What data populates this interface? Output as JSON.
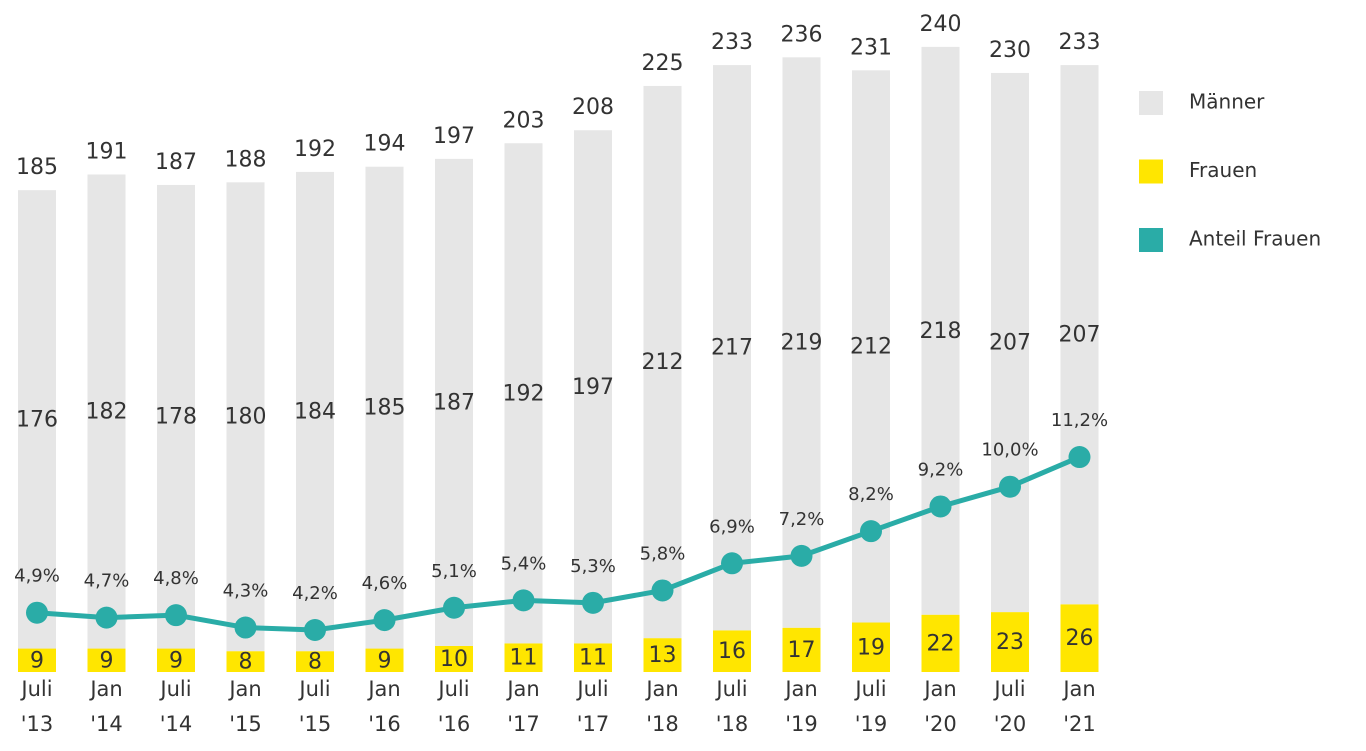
{
  "chart_data": {
    "type": "bar",
    "stacked": true,
    "categories": [
      "Juli '13",
      "Jan '14",
      "Juli '14",
      "Jan '15",
      "Juli '15",
      "Jan '16",
      "Juli '16",
      "Jan '17",
      "Juli '17",
      "Jan '18",
      "Juli '18",
      "Jan '19",
      "Juli '19",
      "Jan '20",
      "Juli '20",
      "Jan '21"
    ],
    "series": [
      {
        "name": "Männer",
        "color": "#e6e6e6",
        "values": [
          176,
          182,
          178,
          180,
          184,
          185,
          187,
          192,
          197,
          212,
          217,
          219,
          212,
          218,
          207,
          207
        ]
      },
      {
        "name": "Frauen",
        "color": "#ffe600",
        "values": [
          9,
          9,
          9,
          8,
          8,
          9,
          10,
          11,
          11,
          13,
          16,
          17,
          19,
          22,
          23,
          26
        ]
      },
      {
        "name": "Anteil Frauen",
        "type": "line",
        "axis": "y2",
        "color": "#2aaca7",
        "values": [
          4.9,
          4.7,
          4.8,
          4.3,
          4.2,
          4.6,
          5.1,
          5.4,
          5.3,
          5.8,
          6.9,
          7.2,
          8.2,
          9.2,
          10.0,
          11.2
        ],
        "value_labels": [
          "4,9%",
          "4,7%",
          "4,8%",
          "4,3%",
          "4,2%",
          "4,6%",
          "5,1%",
          "5,4%",
          "5,3%",
          "5,8%",
          "6,9%",
          "7,2%",
          "8,2%",
          "9,2%",
          "10,0%",
          "11,2%"
        ]
      }
    ],
    "totals": [
      185,
      191,
      187,
      188,
      192,
      194,
      197,
      203,
      208,
      225,
      233,
      236,
      231,
      240,
      230,
      233
    ],
    "ylim": [
      0,
      258
    ],
    "y2lim": [
      2.5,
      29.7
    ],
    "legend": "right"
  }
}
